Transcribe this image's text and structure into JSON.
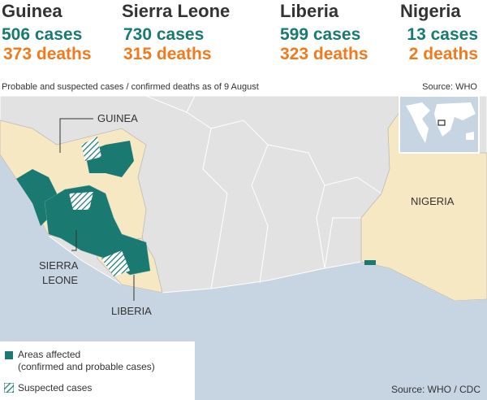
{
  "header": {
    "countries": [
      {
        "name": "Guinea",
        "cases": "506 cases",
        "deaths": "373 deaths"
      },
      {
        "name": "Sierra Leone",
        "cases": "730 cases",
        "deaths": "315 deaths"
      },
      {
        "name": "Liberia",
        "cases": "599 cases",
        "deaths": "323 deaths"
      },
      {
        "name": "Nigeria",
        "cases": "13 cases",
        "deaths": "2 deaths"
      }
    ]
  },
  "caption": "Probable and suspected cases / confirmed deaths as of 9 August",
  "source_top": "Source: WHO",
  "map": {
    "labels": {
      "guinea": "GUINEA",
      "sierra_leone": [
        "SIERRA",
        "LEONE"
      ],
      "liberia": "LIBERIA",
      "nigeria": "NIGERIA"
    }
  },
  "legend": {
    "affected": [
      "Areas affected",
      "(confirmed and probable cases)"
    ],
    "suspected": "Suspected cases"
  },
  "source_bottom": "Source: WHO / CDC"
}
